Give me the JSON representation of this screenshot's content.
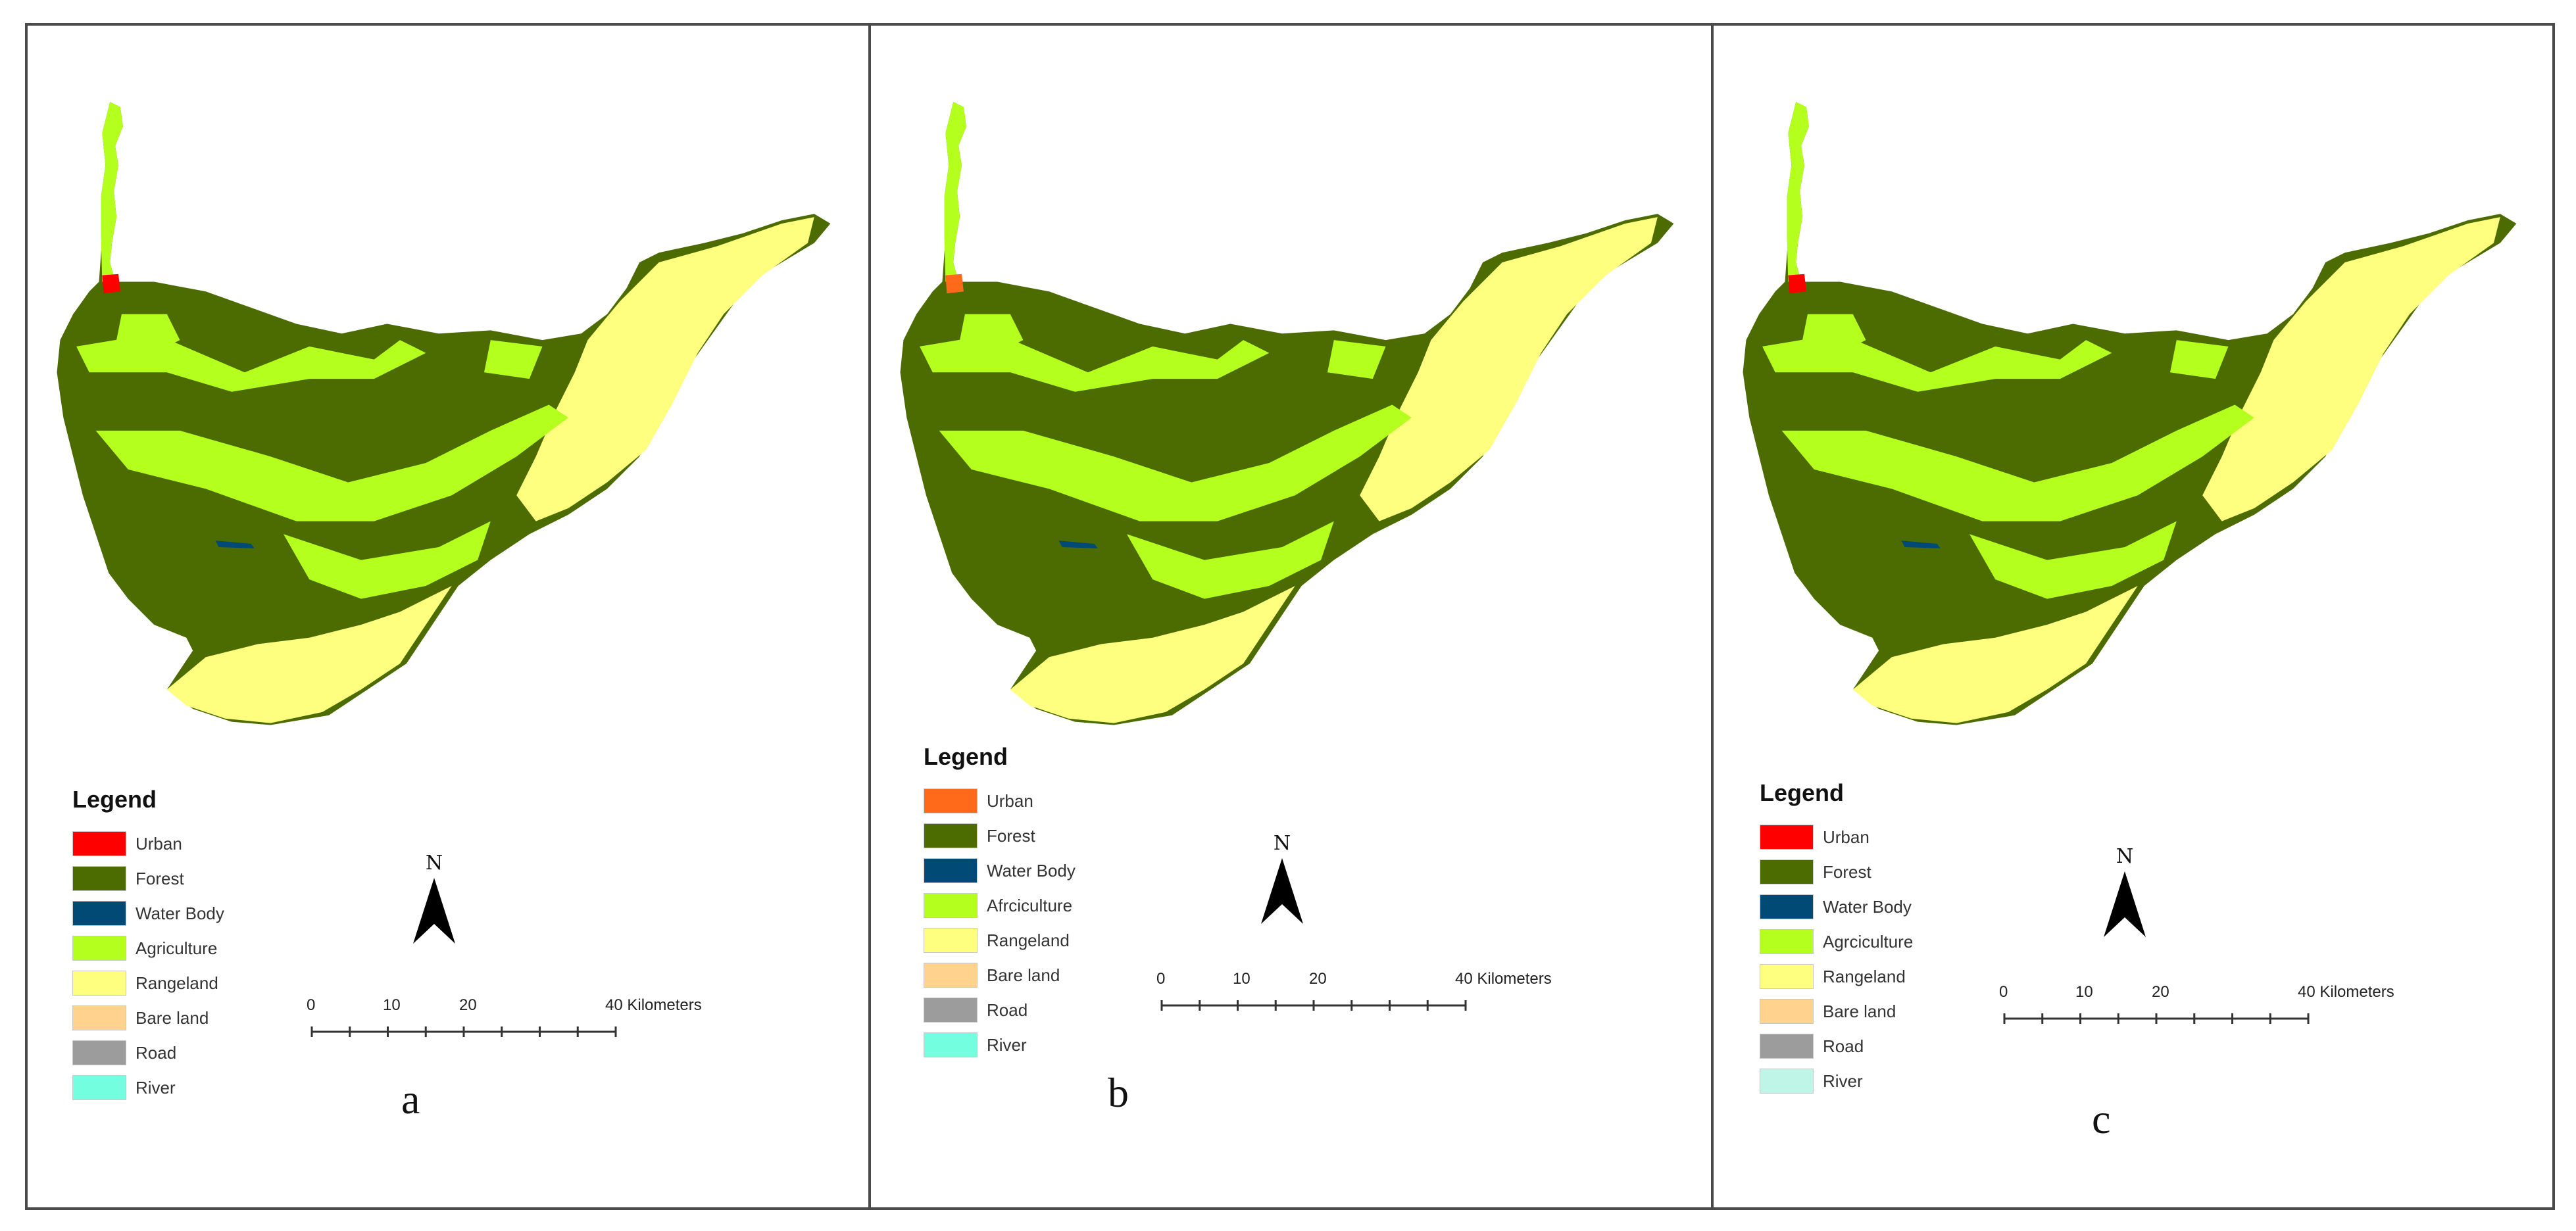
{
  "panels": [
    {
      "letter": "a",
      "legend": {
        "title": "Legend",
        "items": [
          {
            "label": "Urban",
            "color": "#ff0000"
          },
          {
            "label": "Forest",
            "color": "#4c6b00"
          },
          {
            "label": "Water Body",
            "color": "#004a75"
          },
          {
            "label": "Agriculture",
            "color": "#b4ff1e"
          },
          {
            "label": "Rangeland",
            "color": "#ffff7f"
          },
          {
            "label": "Bare land",
            "color": "#ffd38e"
          },
          {
            "label": "Road",
            "color": "#9c9c9c"
          },
          {
            "label": "River",
            "color": "#73ffdf"
          }
        ]
      },
      "north_label": "N",
      "scale": {
        "ticks": [
          "0",
          "10",
          "20"
        ],
        "end_label": "40 Kilometers"
      }
    },
    {
      "letter": "b",
      "legend": {
        "title": "Legend",
        "items": [
          {
            "label": "Urban",
            "color": "#ff6a1a"
          },
          {
            "label": "Forest",
            "color": "#4c6b00"
          },
          {
            "label": "Water Body",
            "color": "#004a75"
          },
          {
            "label": "Afrciculture",
            "color": "#b4ff1e"
          },
          {
            "label": "Rangeland",
            "color": "#ffff7f"
          },
          {
            "label": "Bare land",
            "color": "#ffd38e"
          },
          {
            "label": "Road",
            "color": "#9c9c9c"
          },
          {
            "label": "River",
            "color": "#73ffdf"
          }
        ]
      },
      "north_label": "N",
      "scale": {
        "ticks": [
          "0",
          "10",
          "20"
        ],
        "end_label": "40 Kilometers"
      }
    },
    {
      "letter": "c",
      "legend": {
        "title": "Legend",
        "items": [
          {
            "label": "Urban",
            "color": "#ff0000"
          },
          {
            "label": "Forest",
            "color": "#4c6b00"
          },
          {
            "label": "Water Body",
            "color": "#004a75"
          },
          {
            "label": "Agrciculture",
            "color": "#b4ff1e"
          },
          {
            "label": "Rangeland",
            "color": "#ffff7f"
          },
          {
            "label": "Bare land",
            "color": "#ffd38e"
          },
          {
            "label": "Road",
            "color": "#9c9c9c"
          },
          {
            "label": "River",
            "color": "#bef5e6"
          }
        ]
      },
      "north_label": "N",
      "scale": {
        "ticks": [
          "0",
          "10",
          "20"
        ],
        "end_label": "40 Kilometers"
      }
    }
  ]
}
